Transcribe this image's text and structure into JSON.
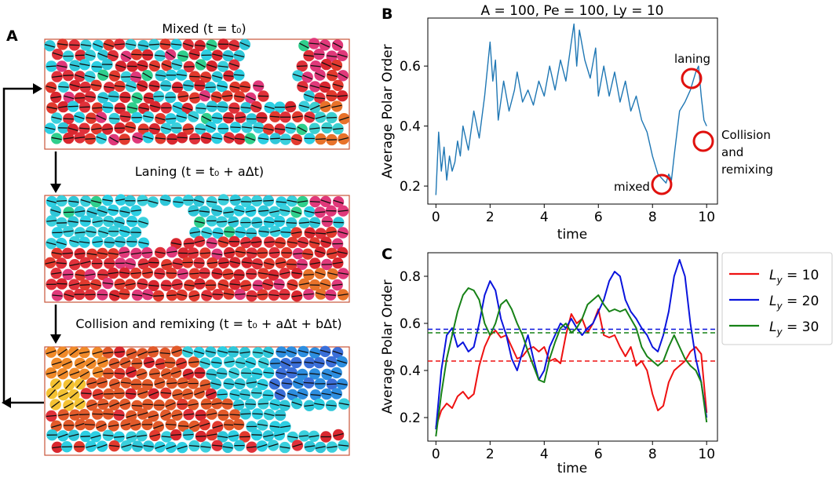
{
  "panels": {
    "a": {
      "letter": "A"
    },
    "b": {
      "letter": "B"
    },
    "c": {
      "letter": "C"
    }
  },
  "snapshots": [
    {
      "caption": "Mixed (t = t₀)"
    },
    {
      "caption": "Laning (t = t₀ + aΔt)"
    },
    {
      "caption": "Collision and remixing (t = t₀ + aΔt + bΔt)"
    }
  ],
  "chart_data": [
    {
      "id": "B",
      "type": "line",
      "title": "A = 100, Pe = 100, Ly = 10",
      "xlabel": "time",
      "ylabel": "Average Polar Order",
      "xlim": [
        -0.3,
        10.4
      ],
      "ylim": [
        0.14,
        0.76
      ],
      "xticks": [
        0,
        2,
        4,
        6,
        8,
        10
      ],
      "yticks": [
        0.2,
        0.4,
        0.6
      ],
      "series": [
        {
          "name": "polar order",
          "color": "#1f77b4",
          "x": [
            0.0,
            0.1,
            0.2,
            0.3,
            0.4,
            0.5,
            0.6,
            0.7,
            0.8,
            0.9,
            1.0,
            1.2,
            1.4,
            1.6,
            1.8,
            2.0,
            2.1,
            2.2,
            2.3,
            2.5,
            2.7,
            2.9,
            3.0,
            3.2,
            3.4,
            3.6,
            3.8,
            4.0,
            4.2,
            4.4,
            4.6,
            4.8,
            5.0,
            5.1,
            5.2,
            5.3,
            5.5,
            5.7,
            5.9,
            6.0,
            6.2,
            6.4,
            6.6,
            6.8,
            7.0,
            7.2,
            7.4,
            7.6,
            7.8,
            8.0,
            8.2,
            8.4,
            8.5,
            8.6,
            8.7,
            8.8,
            9.0,
            9.2,
            9.4,
            9.6,
            9.7,
            9.8,
            9.9,
            10.0
          ],
          "values": [
            0.17,
            0.38,
            0.25,
            0.33,
            0.22,
            0.3,
            0.25,
            0.28,
            0.35,
            0.3,
            0.4,
            0.32,
            0.45,
            0.36,
            0.5,
            0.68,
            0.55,
            0.62,
            0.42,
            0.55,
            0.45,
            0.52,
            0.58,
            0.48,
            0.52,
            0.47,
            0.55,
            0.5,
            0.6,
            0.52,
            0.62,
            0.55,
            0.68,
            0.74,
            0.6,
            0.72,
            0.62,
            0.56,
            0.66,
            0.5,
            0.6,
            0.5,
            0.58,
            0.48,
            0.55,
            0.45,
            0.5,
            0.42,
            0.38,
            0.3,
            0.24,
            0.22,
            0.21,
            0.24,
            0.22,
            0.3,
            0.45,
            0.48,
            0.52,
            0.58,
            0.6,
            0.5,
            0.42,
            0.4
          ]
        }
      ],
      "annotations": [
        {
          "text": "laning",
          "x": 9.6,
          "y": 0.6
        },
        {
          "text": "mixed",
          "x": 8.4,
          "y": 0.21
        },
        {
          "text": "Collision",
          "x": 10.0,
          "y": 0.38
        },
        {
          "text": "and",
          "x": 10.0,
          "y": 0.38
        },
        {
          "text": "remixing",
          "x": 10.0,
          "y": 0.38
        }
      ]
    },
    {
      "id": "C",
      "type": "line",
      "title": "",
      "xlabel": "time",
      "ylabel": "Average Polar Order",
      "xlim": [
        -0.3,
        10.4
      ],
      "ylim": [
        0.1,
        0.9
      ],
      "xticks": [
        0,
        2,
        4,
        6,
        8,
        10
      ],
      "yticks": [
        0.2,
        0.4,
        0.6,
        0.8
      ],
      "series": [
        {
          "name": "L_y = 10",
          "color": "#ee1111",
          "mean": 0.44,
          "x": [
            0.0,
            0.2,
            0.4,
            0.6,
            0.8,
            1.0,
            1.2,
            1.4,
            1.6,
            1.8,
            2.0,
            2.2,
            2.4,
            2.6,
            2.8,
            3.0,
            3.2,
            3.4,
            3.6,
            3.8,
            4.0,
            4.2,
            4.4,
            4.6,
            4.8,
            5.0,
            5.2,
            5.4,
            5.6,
            5.8,
            6.0,
            6.2,
            6.4,
            6.6,
            6.8,
            7.0,
            7.2,
            7.4,
            7.6,
            7.8,
            8.0,
            8.2,
            8.4,
            8.6,
            8.8,
            9.0,
            9.2,
            9.4,
            9.6,
            9.8,
            10.0
          ],
          "values": [
            0.16,
            0.23,
            0.26,
            0.24,
            0.29,
            0.31,
            0.28,
            0.3,
            0.42,
            0.5,
            0.55,
            0.57,
            0.54,
            0.55,
            0.5,
            0.45,
            0.46,
            0.49,
            0.5,
            0.48,
            0.5,
            0.44,
            0.45,
            0.43,
            0.55,
            0.64,
            0.6,
            0.62,
            0.56,
            0.6,
            0.66,
            0.55,
            0.54,
            0.55,
            0.5,
            0.46,
            0.5,
            0.42,
            0.44,
            0.4,
            0.3,
            0.23,
            0.25,
            0.35,
            0.4,
            0.42,
            0.44,
            0.48,
            0.5,
            0.47,
            0.22
          ]
        },
        {
          "name": "L_y = 20",
          "color": "#0a14dd",
          "mean": 0.575,
          "x": [
            0.0,
            0.2,
            0.4,
            0.6,
            0.8,
            1.0,
            1.2,
            1.4,
            1.6,
            1.8,
            2.0,
            2.2,
            2.4,
            2.6,
            2.8,
            3.0,
            3.2,
            3.4,
            3.6,
            3.8,
            4.0,
            4.2,
            4.4,
            4.6,
            4.8,
            5.0,
            5.2,
            5.4,
            5.6,
            5.8,
            6.0,
            6.2,
            6.4,
            6.6,
            6.8,
            7.0,
            7.2,
            7.4,
            7.6,
            7.8,
            8.0,
            8.2,
            8.4,
            8.6,
            8.8,
            9.0,
            9.2,
            9.4,
            9.6,
            9.8,
            10.0
          ],
          "values": [
            0.15,
            0.4,
            0.55,
            0.58,
            0.5,
            0.52,
            0.48,
            0.5,
            0.6,
            0.72,
            0.78,
            0.74,
            0.62,
            0.55,
            0.45,
            0.4,
            0.48,
            0.55,
            0.45,
            0.36,
            0.4,
            0.5,
            0.55,
            0.6,
            0.58,
            0.62,
            0.58,
            0.55,
            0.58,
            0.6,
            0.65,
            0.7,
            0.78,
            0.82,
            0.8,
            0.7,
            0.65,
            0.62,
            0.58,
            0.55,
            0.5,
            0.48,
            0.55,
            0.65,
            0.8,
            0.87,
            0.8,
            0.6,
            0.45,
            0.35,
            0.2
          ]
        },
        {
          "name": "L_y = 30",
          "color": "#178217",
          "mean": 0.56,
          "x": [
            0.0,
            0.2,
            0.4,
            0.6,
            0.8,
            1.0,
            1.2,
            1.4,
            1.6,
            1.8,
            2.0,
            2.2,
            2.4,
            2.6,
            2.8,
            3.0,
            3.2,
            3.4,
            3.6,
            3.8,
            4.0,
            4.2,
            4.4,
            4.6,
            4.8,
            5.0,
            5.2,
            5.4,
            5.6,
            5.8,
            6.0,
            6.2,
            6.4,
            6.6,
            6.8,
            7.0,
            7.2,
            7.4,
            7.6,
            7.8,
            8.0,
            8.2,
            8.4,
            8.6,
            8.8,
            9.0,
            9.2,
            9.4,
            9.6,
            9.8,
            10.0
          ],
          "values": [
            0.12,
            0.3,
            0.45,
            0.55,
            0.65,
            0.72,
            0.75,
            0.74,
            0.7,
            0.6,
            0.55,
            0.6,
            0.68,
            0.7,
            0.66,
            0.6,
            0.55,
            0.48,
            0.42,
            0.36,
            0.35,
            0.45,
            0.52,
            0.58,
            0.6,
            0.56,
            0.58,
            0.62,
            0.68,
            0.7,
            0.72,
            0.68,
            0.65,
            0.66,
            0.65,
            0.66,
            0.62,
            0.58,
            0.5,
            0.46,
            0.44,
            0.42,
            0.44,
            0.5,
            0.55,
            0.5,
            0.45,
            0.42,
            0.4,
            0.35,
            0.18
          ]
        }
      ],
      "legend": [
        {
          "label": "L",
          "sub": "y",
          "rest": " = 10",
          "color": "#ee1111"
        },
        {
          "label": "L",
          "sub": "y",
          "rest": " = 20",
          "color": "#0a14dd"
        },
        {
          "label": "L",
          "sub": "y",
          "rest": " = 30",
          "color": "#178217"
        }
      ]
    }
  ]
}
